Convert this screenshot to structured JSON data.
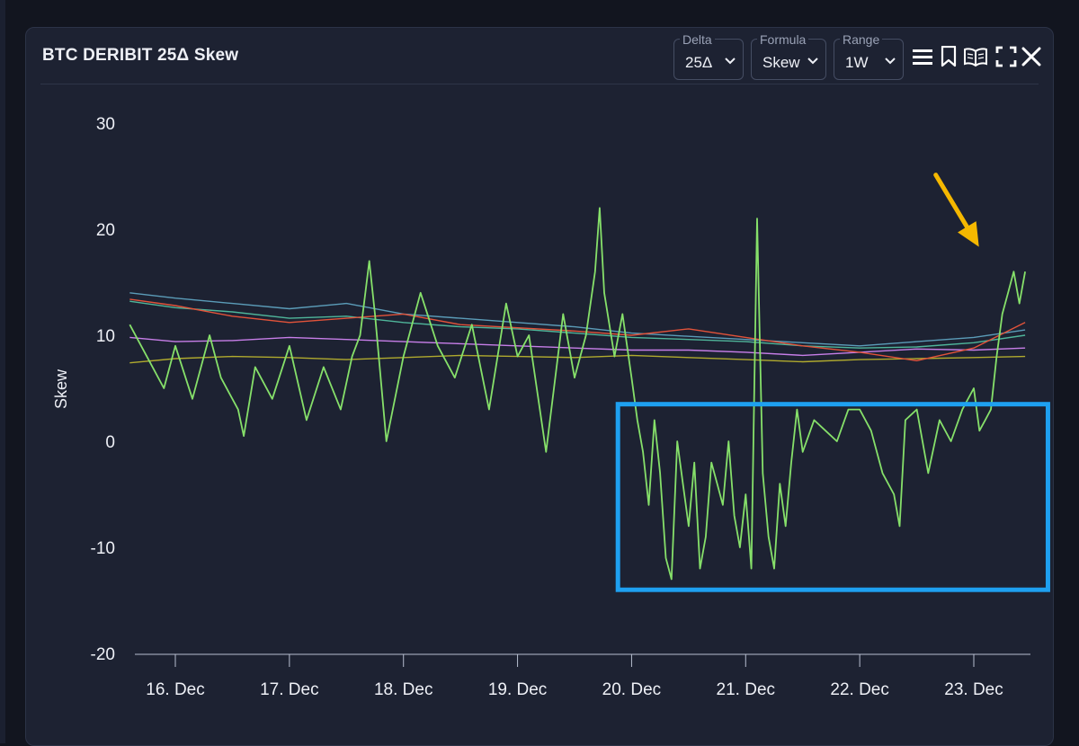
{
  "panel": {
    "title": "BTC DERIBIT 25Δ Skew",
    "controls": [
      {
        "label": "Delta",
        "value": "25Δ"
      },
      {
        "label": "Formula",
        "value": "Skew"
      },
      {
        "label": "Range",
        "value": "1W"
      }
    ],
    "icons": [
      "menu-icon",
      "bookmark-icon",
      "book-icon",
      "fullscreen-icon",
      "close-icon"
    ]
  },
  "colors": {
    "green": "#86e06a",
    "red": "#e2533a",
    "blue": "#5b9cb8",
    "purple": "#c77ee8",
    "olive": "#b0aa2e",
    "teal": "#4fb59a",
    "highlight_box": "#1ea0f0",
    "arrow": "#f5b800"
  },
  "chart_data": {
    "type": "line",
    "title": "BTC DERIBIT 25Δ Skew",
    "ylabel": "Skew",
    "xlabel": "",
    "ylim": [
      -20,
      30
    ],
    "yticks": [
      30,
      20,
      10,
      0,
      -10,
      -20
    ],
    "x_range_days": [
      15.6,
      23.45
    ],
    "x_ticks": [
      {
        "day": 16,
        "label": "16. Dec"
      },
      {
        "day": 17,
        "label": "17. Dec"
      },
      {
        "day": 18,
        "label": "18. Dec"
      },
      {
        "day": 19,
        "label": "19. Dec"
      },
      {
        "day": 20,
        "label": "20. Dec"
      },
      {
        "day": 21,
        "label": "21. Dec"
      },
      {
        "day": 22,
        "label": "22. Dec"
      },
      {
        "day": 23,
        "label": "23. Dec"
      }
    ],
    "highlight_region": {
      "x_from_day": 19.88,
      "x_to_day": 23.65,
      "y_from": -14,
      "y_to": 3.5
    },
    "annotation_arrow": {
      "points_to_day": 23.25,
      "points_to_value": 18
    },
    "series": [
      {
        "name": "series-olive",
        "color": "#b0aa2e",
        "x": [
          15.6,
          16.0,
          16.5,
          17.0,
          17.5,
          18.0,
          18.5,
          19.0,
          19.5,
          20.0,
          20.5,
          21.0,
          21.5,
          22.0,
          22.5,
          23.0,
          23.45
        ],
        "y": [
          7.4,
          7.8,
          8.0,
          7.9,
          7.7,
          7.9,
          8.1,
          8.0,
          7.9,
          8.1,
          7.9,
          7.7,
          7.5,
          7.7,
          7.8,
          7.9,
          8.0
        ]
      },
      {
        "name": "series-purple",
        "color": "#c77ee8",
        "x": [
          15.6,
          16.0,
          16.5,
          17.0,
          17.5,
          18.0,
          18.5,
          19.0,
          19.5,
          20.0,
          20.5,
          21.0,
          21.5,
          22.0,
          22.5,
          23.0,
          23.45
        ],
        "y": [
          9.8,
          9.4,
          9.5,
          9.8,
          9.6,
          9.4,
          9.2,
          9.0,
          8.8,
          8.6,
          8.6,
          8.4,
          8.1,
          8.4,
          8.7,
          8.6,
          8.8
        ]
      },
      {
        "name": "series-teal",
        "color": "#4fb59a",
        "x": [
          15.6,
          16.0,
          16.5,
          17.0,
          17.5,
          18.0,
          18.5,
          19.0,
          19.5,
          20.0,
          20.5,
          21.0,
          21.5,
          22.0,
          22.5,
          23.0,
          23.45
        ],
        "y": [
          13.2,
          12.6,
          12.2,
          11.6,
          11.8,
          11.2,
          10.8,
          10.6,
          10.2,
          9.8,
          9.6,
          9.4,
          9.0,
          8.8,
          8.9,
          9.3,
          10.0
        ]
      },
      {
        "name": "series-blue",
        "color": "#5b9cb8",
        "x": [
          15.6,
          16.0,
          16.5,
          17.0,
          17.5,
          18.0,
          18.5,
          19.0,
          19.5,
          20.0,
          20.5,
          21.0,
          21.5,
          22.0,
          22.5,
          23.0,
          23.45
        ],
        "y": [
          14.0,
          13.5,
          13.0,
          12.5,
          13.0,
          12.0,
          11.6,
          11.2,
          10.8,
          10.2,
          9.9,
          9.6,
          9.3,
          9.0,
          9.4,
          9.8,
          10.5
        ]
      },
      {
        "name": "series-red",
        "color": "#e2533a",
        "x": [
          15.6,
          16.0,
          16.5,
          17.0,
          17.5,
          18.0,
          18.5,
          19.0,
          19.5,
          20.0,
          20.5,
          21.0,
          21.5,
          22.0,
          22.5,
          23.0,
          23.45
        ],
        "y": [
          13.4,
          12.8,
          11.8,
          11.2,
          11.6,
          12.0,
          11.0,
          10.7,
          10.4,
          10.0,
          10.6,
          9.8,
          9.0,
          8.4,
          7.6,
          8.8,
          11.2
        ]
      },
      {
        "name": "series-green",
        "color": "#86e06a",
        "x": [
          15.6,
          15.75,
          15.9,
          16.0,
          16.15,
          16.3,
          16.4,
          16.55,
          16.6,
          16.7,
          16.85,
          17.0,
          17.15,
          17.3,
          17.45,
          17.55,
          17.62,
          17.7,
          17.75,
          17.85,
          18.0,
          18.15,
          18.3,
          18.45,
          18.6,
          18.75,
          18.9,
          19.0,
          19.1,
          19.25,
          19.4,
          19.5,
          19.6,
          19.68,
          19.72,
          19.76,
          19.85,
          19.92,
          20.0,
          20.05,
          20.1,
          20.15,
          20.2,
          20.25,
          20.3,
          20.35,
          20.4,
          20.45,
          20.5,
          20.55,
          20.6,
          20.65,
          20.7,
          20.75,
          20.8,
          20.85,
          20.9,
          20.95,
          21.0,
          21.05,
          21.1,
          21.15,
          21.2,
          21.25,
          21.3,
          21.35,
          21.4,
          21.45,
          21.5,
          21.6,
          21.7,
          21.8,
          21.9,
          22.0,
          22.1,
          22.2,
          22.3,
          22.35,
          22.4,
          22.5,
          22.6,
          22.7,
          22.8,
          22.9,
          23.0,
          23.05,
          23.1,
          23.15,
          23.2,
          23.25,
          23.3,
          23.35,
          23.4,
          23.45
        ],
        "y": [
          11,
          8,
          5,
          9,
          4,
          10,
          6,
          3,
          0.5,
          7,
          4,
          9,
          2,
          7,
          3,
          8,
          10,
          17,
          12,
          0,
          8,
          14,
          9,
          6,
          11,
          3,
          13,
          8,
          10,
          -1,
          12,
          6,
          10,
          16,
          22,
          14,
          8,
          12,
          6,
          2,
          -1,
          -6,
          2,
          -3,
          -11,
          -13,
          0,
          -4,
          -8,
          -2,
          -12,
          -9,
          -2,
          -4,
          -6,
          0,
          -7,
          -10,
          -5,
          -12,
          21,
          -3,
          -9,
          -12,
          -4,
          -8,
          -2,
          3,
          -1,
          2,
          1,
          0,
          3,
          3,
          1,
          -3,
          -5,
          -8,
          2,
          3,
          -3,
          2,
          0,
          3,
          5,
          1,
          2,
          3,
          8,
          12,
          14,
          16,
          13,
          16
        ]
      }
    ]
  }
}
